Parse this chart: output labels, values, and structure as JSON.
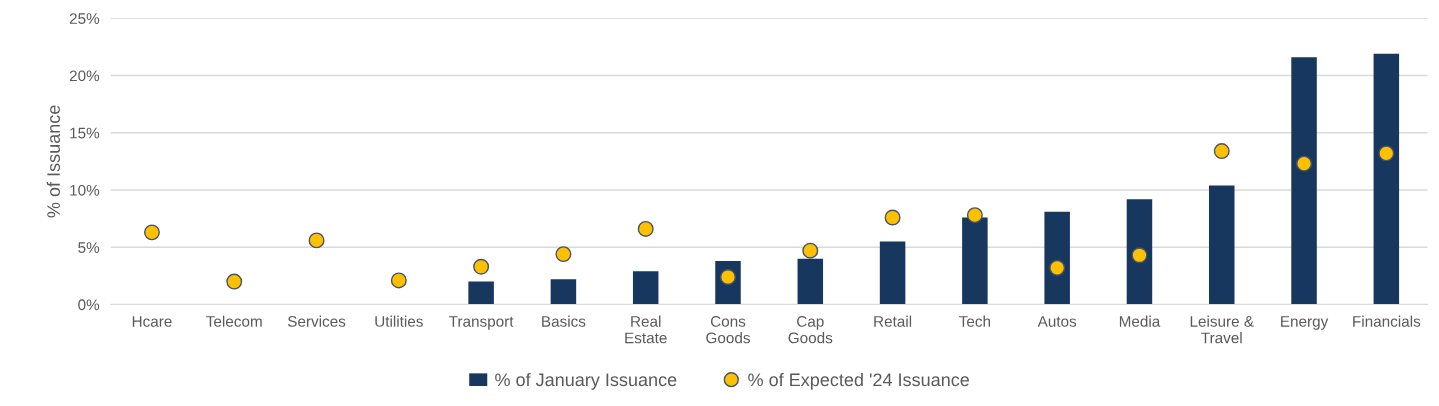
{
  "chart_data": {
    "type": "bar",
    "ylabel": "% of Issuance",
    "categories": [
      "Hcare",
      "Telecom",
      "Services",
      "Utilities",
      "Transport",
      "Basics",
      "Real\nEstate",
      "Cons\nGoods",
      "Cap\nGoods",
      "Retail",
      "Tech",
      "Autos",
      "Media",
      "Leisure &\nTravel",
      "Energy",
      "Financials"
    ],
    "series": [
      {
        "name": "% of January Issuance",
        "color": "#17375e",
        "values": [
          null,
          null,
          null,
          null,
          2.0,
          2.2,
          2.9,
          3.8,
          4.0,
          5.5,
          7.6,
          8.1,
          9.2,
          10.4,
          21.6,
          21.9
        ]
      },
      {
        "name": "% of Expected '24 Issuance",
        "type": "scatter",
        "color": "#ffc000",
        "values": [
          6.3,
          2.0,
          5.6,
          2.1,
          3.3,
          4.4,
          6.6,
          2.4,
          4.7,
          7.6,
          7.8,
          3.2,
          4.3,
          13.4,
          12.3,
          13.2
        ]
      }
    ],
    "ylim": [
      0,
      25
    ],
    "yticks": [
      {
        "value": 0,
        "label": "0%"
      },
      {
        "value": 5,
        "label": "5%"
      },
      {
        "value": 10,
        "label": "10%"
      },
      {
        "value": 15,
        "label": "15%"
      },
      {
        "value": 20,
        "label": "20%"
      },
      {
        "value": 25,
        "label": "25%"
      }
    ],
    "grid": "y",
    "legend": "bottom",
    "marker": "circle"
  }
}
